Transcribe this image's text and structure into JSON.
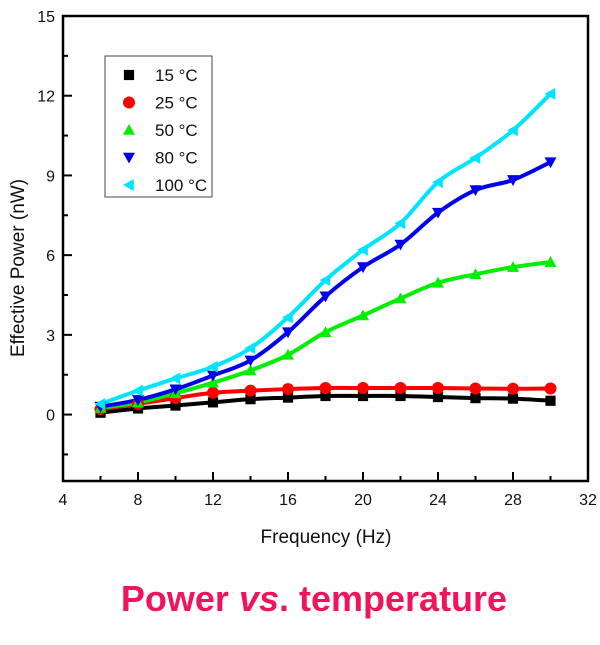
{
  "caption": {
    "part1": "Power ",
    "italic": "vs",
    "part2": ". temperature",
    "color": "#f0145a"
  },
  "chart_data": {
    "type": "line",
    "title": "",
    "xlabel": "Frequency (Hz)",
    "ylabel": "Effective Power (nW)",
    "xlim": [
      4,
      32
    ],
    "ylim": [
      -2.5,
      15
    ],
    "x_ticks": [
      4,
      8,
      12,
      16,
      20,
      24,
      28,
      32
    ],
    "y_ticks": [
      0,
      3,
      6,
      9,
      12,
      15
    ],
    "x_tick_labels": [
      "4",
      "8",
      "12",
      "16",
      "20",
      "24",
      "28",
      "32"
    ],
    "y_tick_labels": [
      "0",
      "3",
      "6",
      "9",
      "12",
      "15"
    ],
    "grid": false,
    "legend_position": "top-left",
    "x": [
      6,
      8,
      10,
      12,
      14,
      16,
      18,
      20,
      22,
      24,
      26,
      28,
      30
    ],
    "series": [
      {
        "name": "15 °C",
        "color": "#000000",
        "marker": "square",
        "values": [
          0.07,
          0.23,
          0.34,
          0.46,
          0.58,
          0.64,
          0.7,
          0.7,
          0.7,
          0.66,
          0.62,
          0.6,
          0.52
        ]
      },
      {
        "name": "25 °C",
        "color": "#ff0000",
        "marker": "circle",
        "values": [
          0.2,
          0.4,
          0.62,
          0.82,
          0.9,
          0.96,
          1.0,
          1.0,
          1.0,
          1.0,
          0.98,
          0.97,
          0.98
        ]
      },
      {
        "name": "50 °C",
        "color": "#00ee00",
        "marker": "triangle-up",
        "values": [
          0.25,
          0.45,
          0.8,
          1.2,
          1.66,
          2.25,
          3.1,
          3.73,
          4.37,
          4.96,
          5.28,
          5.55,
          5.74
        ]
      },
      {
        "name": "80 °C",
        "color": "#0000ee",
        "marker": "triangle-down",
        "values": [
          0.3,
          0.55,
          0.95,
          1.47,
          2.04,
          3.1,
          4.45,
          5.55,
          6.4,
          7.6,
          8.45,
          8.83,
          9.5
        ]
      },
      {
        "name": "100 °C",
        "color": "#00e5ff",
        "marker": "triangle-left",
        "values": [
          0.4,
          0.9,
          1.36,
          1.8,
          2.5,
          3.66,
          5.06,
          6.2,
          7.2,
          8.75,
          9.66,
          10.7,
          12.07
        ]
      }
    ]
  }
}
